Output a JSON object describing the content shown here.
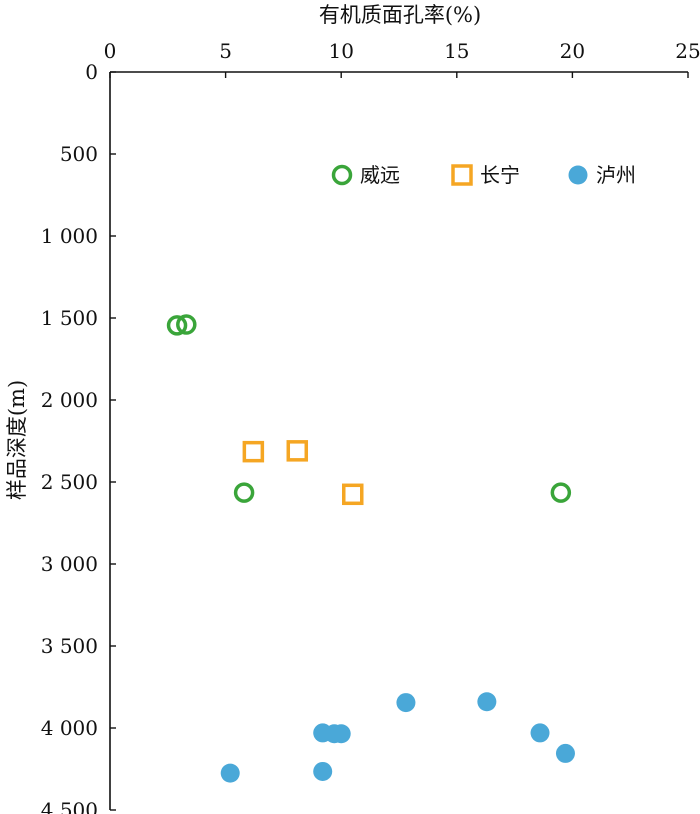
{
  "chart_data": {
    "type": "scatter",
    "xlabel": "有机质面孔率(%)",
    "ylabel": "样品深度(m)",
    "xlim": [
      0,
      25
    ],
    "ylim": [
      0,
      4500
    ],
    "x_ticks": [
      "0",
      "5",
      "10",
      "15",
      "20",
      "25"
    ],
    "y_ticks": [
      "0",
      "500",
      "1 000",
      "1 500",
      "2 000",
      "2 500",
      "3 000",
      "3 500",
      "4 000",
      "4 500"
    ],
    "x_axis_position": "top",
    "y_inverted": true,
    "grid": false,
    "legend_position": "top-right",
    "series": [
      {
        "name": "威远",
        "marker": "hollow-circle",
        "color": "#3aa53a",
        "points": [
          [
            2.9,
            1545
          ],
          [
            3.3,
            1540
          ],
          [
            5.8,
            2565
          ],
          [
            19.5,
            2565
          ]
        ]
      },
      {
        "name": "长宁",
        "marker": "hollow-square",
        "color": "#f5a623",
        "points": [
          [
            6.2,
            2315
          ],
          [
            8.1,
            2310
          ],
          [
            10.5,
            2575
          ]
        ]
      },
      {
        "name": "泸州",
        "marker": "filled-circle",
        "color": "#4aa8d8",
        "points": [
          [
            12.8,
            3845
          ],
          [
            16.3,
            3840
          ],
          [
            9.2,
            4030
          ],
          [
            9.7,
            4035
          ],
          [
            10.0,
            4035
          ],
          [
            18.6,
            4030
          ],
          [
            19.7,
            4155
          ],
          [
            5.2,
            4275
          ],
          [
            9.2,
            4265
          ]
        ]
      }
    ]
  }
}
